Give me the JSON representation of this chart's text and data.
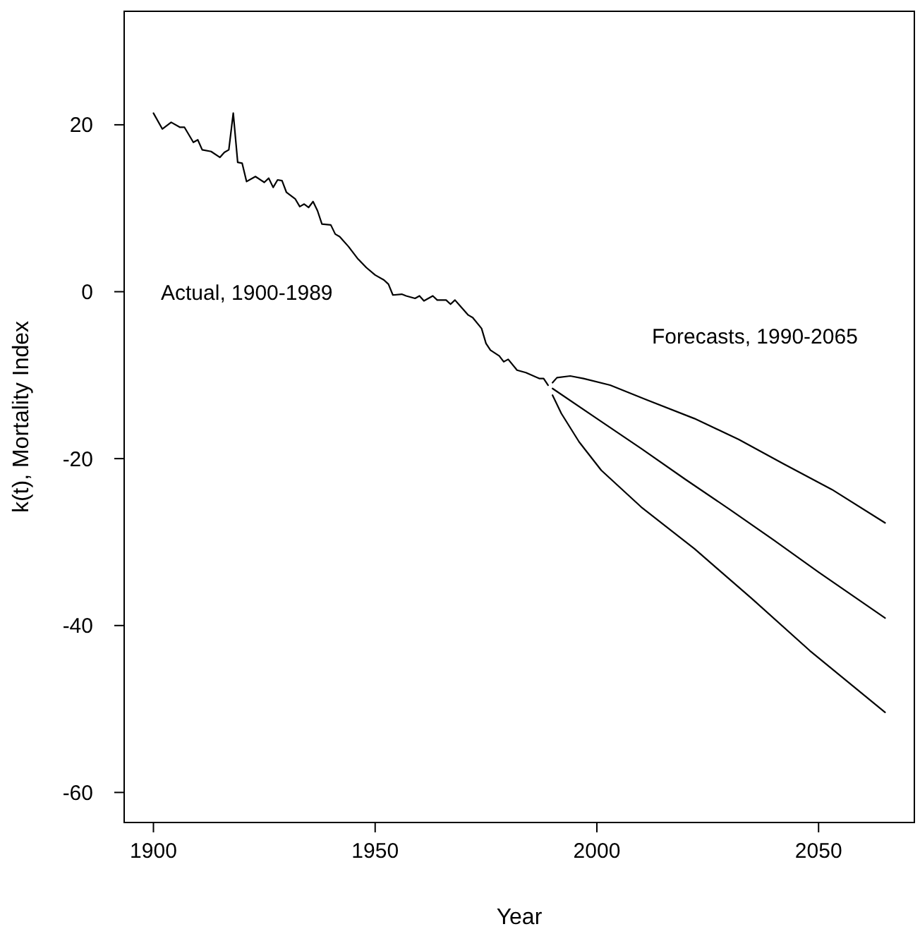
{
  "chart_data": {
    "type": "line",
    "xlabel": "Year",
    "ylabel": "k(t), Mortality Index",
    "xlim": [
      1893.4,
      2071.6
    ],
    "ylim": [
      -63.6,
      33.6
    ],
    "xticks": [
      1900,
      1950,
      2000,
      2050
    ],
    "yticks": [
      -60,
      -40,
      -20,
      0,
      20
    ],
    "grid": false,
    "marker": "none",
    "line_style": "solid",
    "annotations": [
      "Actual, 1900-1989",
      "Forecasts, 1990-2065"
    ],
    "series": [
      {
        "color": "#000000",
        "x": [
          1900,
          1902,
          1904,
          1906,
          1907,
          1909,
          1910,
          1911,
          1913,
          1915,
          1916,
          1917,
          1918,
          1919,
          1920,
          1921,
          1923,
          1925,
          1926,
          1927,
          1928,
          1929,
          1930,
          1932,
          1933,
          1934,
          1935,
          1936,
          1937,
          1938,
          1940,
          1941,
          1942,
          1944,
          1946,
          1948,
          1950,
          1952,
          1953,
          1954,
          1956,
          1957,
          1959,
          1960,
          1961,
          1963,
          1964,
          1966,
          1967,
          1968,
          1969,
          1971,
          1972,
          1974,
          1975,
          1976,
          1978,
          1979,
          1980,
          1982,
          1984,
          1987,
          1988,
          1989
        ],
        "values": [
          21.4,
          19.5,
          20.3,
          19.7,
          19.7,
          17.9,
          18.2,
          17.0,
          16.8,
          16.1,
          16.7,
          17.0,
          21.4,
          15.5,
          15.4,
          13.2,
          13.8,
          13.1,
          13.6,
          12.5,
          13.4,
          13.3,
          11.9,
          11.1,
          10.2,
          10.5,
          10.1,
          10.8,
          9.7,
          8.1,
          8.0,
          6.9,
          6.6,
          5.4,
          4.0,
          2.9,
          2.0,
          1.4,
          0.9,
          -0.4,
          -0.3,
          -0.5,
          -0.8,
          -0.5,
          -1.1,
          -0.5,
          -1.0,
          -1.0,
          -1.5,
          -1.0,
          -1.6,
          -2.8,
          -3.1,
          -4.4,
          -6.2,
          -7.0,
          -7.7,
          -8.4,
          -8.1,
          -9.4,
          -9.7,
          -10.4,
          -10.4,
          -11.2
        ]
      },
      {
        "color": "#000000",
        "x": [
          1990,
          1991,
          1994,
          1997,
          2003,
          2011,
          2022,
          2032,
          2042,
          2053,
          2065
        ],
        "values": [
          -10.9,
          -10.3,
          -10.1,
          -10.4,
          -11.2,
          -12.9,
          -15.2,
          -17.7,
          -20.6,
          -23.7,
          -27.7
        ]
      },
      {
        "color": "#000000",
        "x": [
          1990,
          2000,
          2010,
          2020,
          2030,
          2040,
          2050,
          2065
        ],
        "values": [
          -11.6,
          -15.2,
          -18.8,
          -22.5,
          -26.1,
          -29.8,
          -33.6,
          -39.1
        ]
      },
      {
        "color": "#000000",
        "x": [
          1990,
          1992,
          1996,
          2001,
          2010,
          2022,
          2035,
          2048,
          2065
        ],
        "values": [
          -12.4,
          -14.6,
          -18.0,
          -21.4,
          -25.8,
          -30.8,
          -36.8,
          -43.0,
          -50.4
        ]
      }
    ]
  }
}
